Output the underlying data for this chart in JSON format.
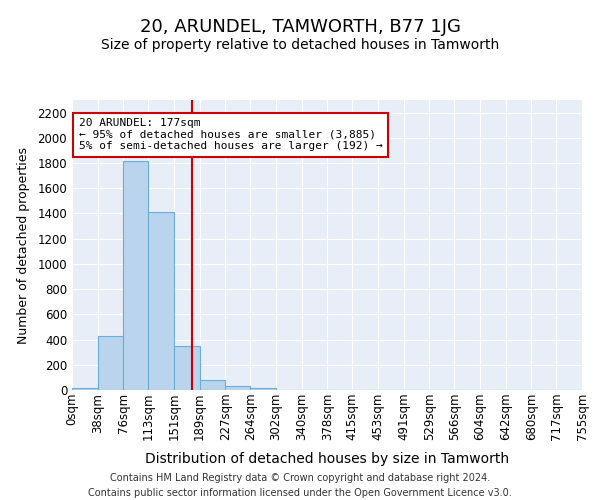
{
  "title": "20, ARUNDEL, TAMWORTH, B77 1JG",
  "subtitle": "Size of property relative to detached houses in Tamworth",
  "xlabel": "Distribution of detached houses by size in Tamworth",
  "ylabel": "Number of detached properties",
  "footer_line1": "Contains HM Land Registry data © Crown copyright and database right 2024.",
  "footer_line2": "Contains public sector information licensed under the Open Government Licence v3.0.",
  "annotation_line1": "20 ARUNDEL: 177sqm",
  "annotation_line2": "← 95% of detached houses are smaller (3,885)",
  "annotation_line3": "5% of semi-detached houses are larger (192) →",
  "bin_edges": [
    0,
    38,
    76,
    113,
    151,
    189,
    227,
    264,
    302,
    340,
    378,
    415,
    453,
    491,
    529,
    566,
    604,
    642,
    680,
    717,
    755
  ],
  "bin_counts": [
    15,
    425,
    1815,
    1410,
    350,
    80,
    30,
    18,
    0,
    0,
    0,
    0,
    0,
    0,
    0,
    0,
    0,
    0,
    0,
    0
  ],
  "bar_color": "#bad4ed",
  "bar_edge_color": "#6aaed6",
  "vline_color": "#cc0000",
  "vline_x": 177,
  "annotation_box_edgecolor": "#cc0000",
  "background_color": "#e8eef8",
  "grid_color": "#ffffff",
  "ylim": [
    0,
    2300
  ],
  "yticks": [
    0,
    200,
    400,
    600,
    800,
    1000,
    1200,
    1400,
    1600,
    1800,
    2000,
    2200
  ],
  "title_fontsize": 13,
  "subtitle_fontsize": 10,
  "ylabel_fontsize": 9,
  "xlabel_fontsize": 10,
  "tick_fontsize": 8.5,
  "footer_fontsize": 7
}
